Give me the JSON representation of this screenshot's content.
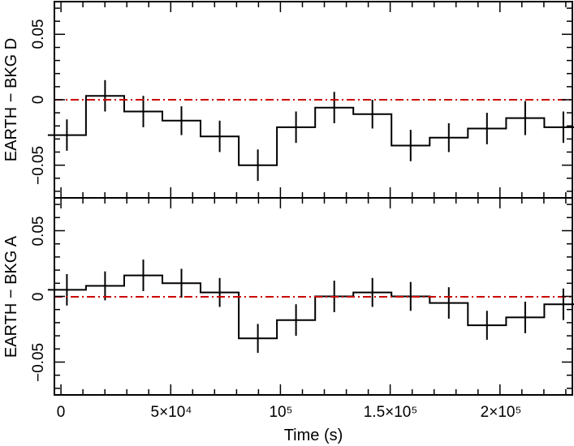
{
  "chart_data": {
    "type": "step-with-errorbars",
    "xlabel": "Time (s)",
    "xlim": [
      -3000,
      233000
    ],
    "x_tick_labels": [
      {
        "value": 0,
        "text": "0"
      },
      {
        "value": 50000,
        "text": "5×10⁴"
      },
      {
        "value": 100000,
        "text": "10⁵"
      },
      {
        "value": 150000,
        "text": "1.5×10⁵"
      },
      {
        "value": 200000,
        "text": "2×10⁵"
      }
    ],
    "x_minor_step": 10000,
    "bin_width": 17400,
    "reference_line": {
      "y": 0,
      "style": "dash-dot",
      "color": "#cc0000"
    },
    "panels": [
      {
        "ylabel": "EARTH − BKG D",
        "ylim": [
          -0.075,
          0.075
        ],
        "y_tick_labels": [
          {
            "value": -0.05,
            "text": "−0.05"
          },
          {
            "value": 0,
            "text": "0"
          },
          {
            "value": 0.05,
            "text": "0.05"
          }
        ],
        "y_minor_step": 0.01,
        "x": [
          2700,
          20100,
          37500,
          54900,
          72300,
          89700,
          107100,
          124500,
          141900,
          159300,
          176700,
          194100,
          211500,
          228900
        ],
        "y": [
          -0.027,
          0.003,
          -0.009,
          -0.016,
          -0.028,
          -0.05,
          -0.021,
          -0.006,
          -0.011,
          -0.035,
          -0.029,
          -0.022,
          -0.014,
          -0.021
        ],
        "yerr": [
          0.012,
          0.012,
          0.012,
          0.011,
          0.012,
          0.012,
          0.012,
          0.012,
          0.011,
          0.012,
          0.011,
          0.012,
          0.013,
          0.012
        ]
      },
      {
        "ylabel": "EARTH − BKG A",
        "ylim": [
          -0.075,
          0.075
        ],
        "y_tick_labels": [
          {
            "value": -0.05,
            "text": "−0.05"
          },
          {
            "value": 0,
            "text": "0"
          },
          {
            "value": 0.05,
            "text": "0.05"
          }
        ],
        "y_minor_step": 0.01,
        "x": [
          2700,
          20100,
          37500,
          54900,
          72300,
          89700,
          107100,
          124500,
          141900,
          159300,
          176700,
          194100,
          211500,
          228900
        ],
        "y": [
          0.005,
          0.008,
          0.016,
          0.01,
          0.003,
          -0.032,
          -0.018,
          0.0,
          0.003,
          0.0,
          -0.005,
          -0.022,
          -0.016,
          -0.006
        ],
        "yerr": [
          0.012,
          0.011,
          0.012,
          0.011,
          0.011,
          0.011,
          0.012,
          0.012,
          0.011,
          0.011,
          0.012,
          0.011,
          0.012,
          0.012
        ]
      }
    ]
  }
}
